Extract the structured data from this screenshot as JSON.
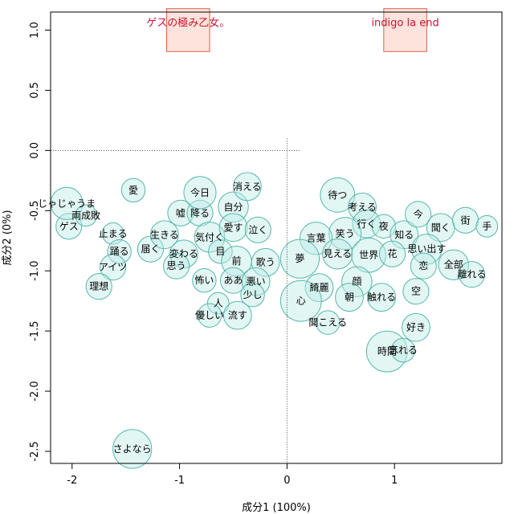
{
  "chart_data": {
    "type": "scatter",
    "xlabel": "成分1 (100%)",
    "ylabel": "成分2 (0%)",
    "xlim": [
      -2.2,
      2.0
    ],
    "ylim": [
      -2.6,
      1.15
    ],
    "xticks": [
      -2,
      -1,
      0,
      1
    ],
    "yticks": [
      1.0,
      0.5,
      0.0,
      -0.5,
      -1.0,
      -1.5,
      -2.0,
      -2.5
    ],
    "xtick_labels": [
      "-2",
      "-1",
      "0",
      "1"
    ],
    "ytick_labels": [
      "1.0",
      "0.5",
      "0.0",
      "-0.5",
      "-1.0",
      "-1.5",
      "-2.0",
      "-2.5"
    ],
    "colors": {
      "bubble_fill": "#bfece6",
      "bubble_stroke": "#55b7ab",
      "artist_fill": "#fde3db",
      "artist_stroke": "#e0604a",
      "artist_text": "#cc1133",
      "reference_line": "#444444"
    },
    "artists": [
      {
        "name": "ゲスの極み乙女。",
        "x": -0.92,
        "y": 1.0
      },
      {
        "name": "indigo la end",
        "x": 1.1,
        "y": 1.0
      }
    ],
    "words": [
      {
        "word": "ゲス",
        "x": -2.03,
        "y": -0.63,
        "size": 0.12
      },
      {
        "word": "じゃじゃうま",
        "x": -2.05,
        "y": -0.44,
        "size": 0.15
      },
      {
        "word": "両成敗",
        "x": -1.87,
        "y": -0.54,
        "size": 0.1
      },
      {
        "word": "愛",
        "x": -1.43,
        "y": -0.33,
        "size": 0.11
      },
      {
        "word": "止まる",
        "x": -1.62,
        "y": -0.69,
        "size": 0.1
      },
      {
        "word": "踊る",
        "x": -1.56,
        "y": -0.84,
        "size": 0.11
      },
      {
        "word": "アイツ",
        "x": -1.62,
        "y": -0.97,
        "size": 0.12
      },
      {
        "word": "理想",
        "x": -1.75,
        "y": -1.13,
        "size": 0.12
      },
      {
        "word": "届く",
        "x": -1.27,
        "y": -0.82,
        "size": 0.12
      },
      {
        "word": "生きる",
        "x": -1.14,
        "y": -0.7,
        "size": 0.13
      },
      {
        "word": "嘘",
        "x": -0.99,
        "y": -0.52,
        "size": 0.12
      },
      {
        "word": "降る",
        "x": -0.81,
        "y": -0.52,
        "size": 0.12
      },
      {
        "word": "今日",
        "x": -0.81,
        "y": -0.35,
        "size": 0.15
      },
      {
        "word": "変わる",
        "x": -0.96,
        "y": -0.86,
        "size": 0.13
      },
      {
        "word": "思う",
        "x": -1.03,
        "y": -0.96,
        "size": 0.12
      },
      {
        "word": "気付く",
        "x": -0.72,
        "y": -0.72,
        "size": 0.14
      },
      {
        "word": "自分",
        "x": -0.5,
        "y": -0.47,
        "size": 0.14
      },
      {
        "word": "消える",
        "x": -0.37,
        "y": -0.3,
        "size": 0.13
      },
      {
        "word": "愛す",
        "x": -0.5,
        "y": -0.64,
        "size": 0.13
      },
      {
        "word": "泣く",
        "x": -0.27,
        "y": -0.66,
        "size": 0.12
      },
      {
        "word": "目",
        "x": -0.62,
        "y": -0.84,
        "size": 0.11
      },
      {
        "word": "前",
        "x": -0.47,
        "y": -0.92,
        "size": 0.14
      },
      {
        "word": "歌う",
        "x": -0.2,
        "y": -0.93,
        "size": 0.13
      },
      {
        "word": "怖い",
        "x": -0.77,
        "y": -1.08,
        "size": 0.11
      },
      {
        "word": "ああ",
        "x": -0.5,
        "y": -1.08,
        "size": 0.12
      },
      {
        "word": "悪い",
        "x": -0.29,
        "y": -1.09,
        "size": 0.13
      },
      {
        "word": "少し",
        "x": -0.32,
        "y": -1.2,
        "size": 0.11
      },
      {
        "word": "人",
        "x": -0.64,
        "y": -1.27,
        "size": 0.1
      },
      {
        "word": "優しい",
        "x": -0.72,
        "y": -1.37,
        "size": 0.11
      },
      {
        "word": "流す",
        "x": -0.46,
        "y": -1.37,
        "size": 0.13
      },
      {
        "word": "待つ",
        "x": 0.47,
        "y": -0.37,
        "size": 0.16
      },
      {
        "word": "考える",
        "x": 0.7,
        "y": -0.47,
        "size": 0.13
      },
      {
        "word": "行く",
        "x": 0.74,
        "y": -0.61,
        "size": 0.13
      },
      {
        "word": "夜",
        "x": 0.9,
        "y": -0.63,
        "size": 0.11
      },
      {
        "word": "笑う",
        "x": 0.54,
        "y": -0.69,
        "size": 0.15
      },
      {
        "word": "言葉",
        "x": 0.27,
        "y": -0.73,
        "size": 0.15
      },
      {
        "word": "知る",
        "x": 1.09,
        "y": -0.7,
        "size": 0.13
      },
      {
        "word": "見える",
        "x": 0.47,
        "y": -0.86,
        "size": 0.14
      },
      {
        "word": "世界",
        "x": 0.76,
        "y": -0.87,
        "size": 0.16
      },
      {
        "word": "花",
        "x": 0.98,
        "y": -0.86,
        "size": 0.12
      },
      {
        "word": "今",
        "x": 1.22,
        "y": -0.53,
        "size": 0.12
      },
      {
        "word": "聞く",
        "x": 1.43,
        "y": -0.64,
        "size": 0.13
      },
      {
        "word": "街",
        "x": 1.66,
        "y": -0.58,
        "size": 0.12
      },
      {
        "word": "手",
        "x": 1.86,
        "y": -0.63,
        "size": 0.1
      },
      {
        "word": "思い出す",
        "x": 1.3,
        "y": -0.82,
        "size": 0.14
      },
      {
        "word": "恋",
        "x": 1.27,
        "y": -0.96,
        "size": 0.12
      },
      {
        "word": "全部",
        "x": 1.55,
        "y": -0.95,
        "size": 0.14
      },
      {
        "word": "離れる",
        "x": 1.72,
        "y": -1.03,
        "size": 0.12
      },
      {
        "word": "夢",
        "x": 0.12,
        "y": -0.9,
        "size": 0.18
      },
      {
        "word": "綺麗",
        "x": 0.3,
        "y": -1.14,
        "size": 0.13
      },
      {
        "word": "顔",
        "x": 0.65,
        "y": -1.09,
        "size": 0.14
      },
      {
        "word": "心",
        "x": 0.13,
        "y": -1.25,
        "size": 0.19
      },
      {
        "word": "朝",
        "x": 0.58,
        "y": -1.22,
        "size": 0.13
      },
      {
        "word": "触れる",
        "x": 0.88,
        "y": -1.22,
        "size": 0.13
      },
      {
        "word": "空",
        "x": 1.2,
        "y": -1.17,
        "size": 0.12
      },
      {
        "word": "聞こえる",
        "x": 0.38,
        "y": -1.43,
        "size": 0.11
      },
      {
        "word": "好き",
        "x": 1.2,
        "y": -1.47,
        "size": 0.13
      },
      {
        "word": "時間",
        "x": 0.93,
        "y": -1.67,
        "size": 0.19
      },
      {
        "word": "忘れる",
        "x": 1.08,
        "y": -1.66,
        "size": 0.11
      },
      {
        "word": "さよなら",
        "x": -1.44,
        "y": -2.48,
        "size": 0.18
      }
    ]
  }
}
